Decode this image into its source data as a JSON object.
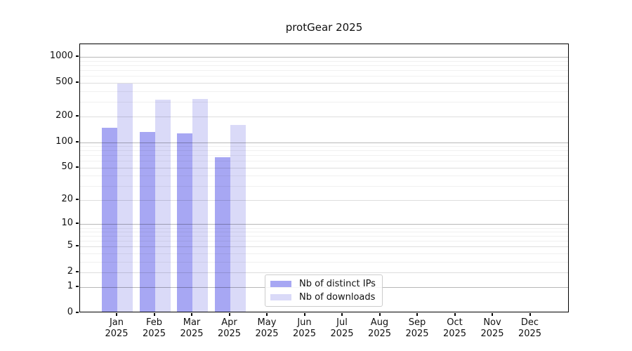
{
  "chart_data": {
    "type": "bar",
    "title": "protGear 2025",
    "categories": [
      {
        "label": "Jan",
        "year": "2025"
      },
      {
        "label": "Feb",
        "year": "2025"
      },
      {
        "label": "Mar",
        "year": "2025"
      },
      {
        "label": "Apr",
        "year": "2025"
      },
      {
        "label": "May",
        "year": "2025"
      },
      {
        "label": "Jun",
        "year": "2025"
      },
      {
        "label": "Jul",
        "year": "2025"
      },
      {
        "label": "Aug",
        "year": "2025"
      },
      {
        "label": "Sep",
        "year": "2025"
      },
      {
        "label": "Oct",
        "year": "2025"
      },
      {
        "label": "Nov",
        "year": "2025"
      },
      {
        "label": "Dec",
        "year": "2025"
      }
    ],
    "series": [
      {
        "name": "Nb of distinct IPs",
        "color": "#a7a7f3",
        "values": [
          148,
          132,
          128,
          66,
          0,
          0,
          0,
          0,
          0,
          0,
          0,
          0
        ]
      },
      {
        "name": "Nb of downloads",
        "color": "#dadaf8",
        "values": [
          490,
          316,
          322,
          160,
          0,
          0,
          0,
          0,
          0,
          0,
          0,
          0
        ]
      }
    ],
    "yscale": "log1p",
    "yticks": [
      0,
      1,
      2,
      5,
      10,
      20,
      50,
      100,
      200,
      500,
      1000
    ],
    "ylim": [
      0,
      1420
    ],
    "grid": "major+minor",
    "legend_position": "lower center"
  }
}
